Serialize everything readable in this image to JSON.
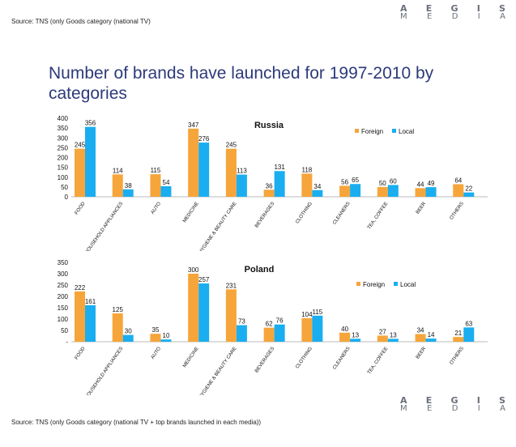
{
  "source_top": "Source: TNS (only Goods category (national TV)",
  "source_bottom": "Source: TNS (only Goods category (national TV + top brands launched in each media))",
  "logo": {
    "line1": [
      "A",
      "E",
      "G",
      "I",
      "S"
    ],
    "line2": [
      "M",
      "E",
      "D",
      "I",
      "A"
    ]
  },
  "title": "Number of brands have launched for 1997-2010 by categories",
  "colors": {
    "foreign": "#f6a53a",
    "local": "#1aaef0",
    "title": "#2d3a7a"
  },
  "chart_data": [
    {
      "type": "bar",
      "title": "Russia",
      "categories": [
        "FOOD",
        "HOUSEHOLD APPLIANCES",
        "AUTO",
        "MEDICINE",
        "HYGIENE & BEAUTY CARE",
        "BEVERAGES",
        "CLOTHING",
        "CLEANERS",
        "TEA, COFFEE",
        "BEER",
        "OTHERS"
      ],
      "series": [
        {
          "name": "Foreign",
          "values": [
            245,
            114,
            115,
            347,
            245,
            36,
            118,
            56,
            50,
            44,
            64
          ]
        },
        {
          "name": "Local",
          "values": [
            356,
            38,
            54,
            276,
            113,
            131,
            34,
            65,
            60,
            49,
            22
          ]
        }
      ],
      "yticks": [
        0,
        50,
        100,
        150,
        200,
        250,
        300,
        350,
        400
      ],
      "ylim": [
        0,
        400
      ],
      "xlabel": "",
      "ylabel": "",
      "legend": "top-right"
    },
    {
      "type": "bar",
      "title": "Poland",
      "categories": [
        "FOOD",
        "HOUSEHOLD APPLIANCES",
        "AUTO",
        "MEDICINE",
        "HYGIENE & BEAUTY CARE",
        "BEVERAGES",
        "CLOTHING",
        "CLEANERS",
        "TEA, COFFEE",
        "BEER",
        "OTHERS"
      ],
      "series": [
        {
          "name": "Foreign",
          "values": [
            222,
            125,
            35,
            300,
            231,
            62,
            104,
            40,
            27,
            34,
            21
          ]
        },
        {
          "name": "Local",
          "values": [
            161,
            30,
            10,
            257,
            73,
            76,
            115,
            13,
            13,
            14,
            63
          ]
        }
      ],
      "yticks": [
        "-",
        50,
        100,
        150,
        200,
        250,
        300,
        350
      ],
      "ylim": [
        0,
        350
      ],
      "xlabel": "",
      "ylabel": "",
      "legend": "top-right"
    }
  ]
}
